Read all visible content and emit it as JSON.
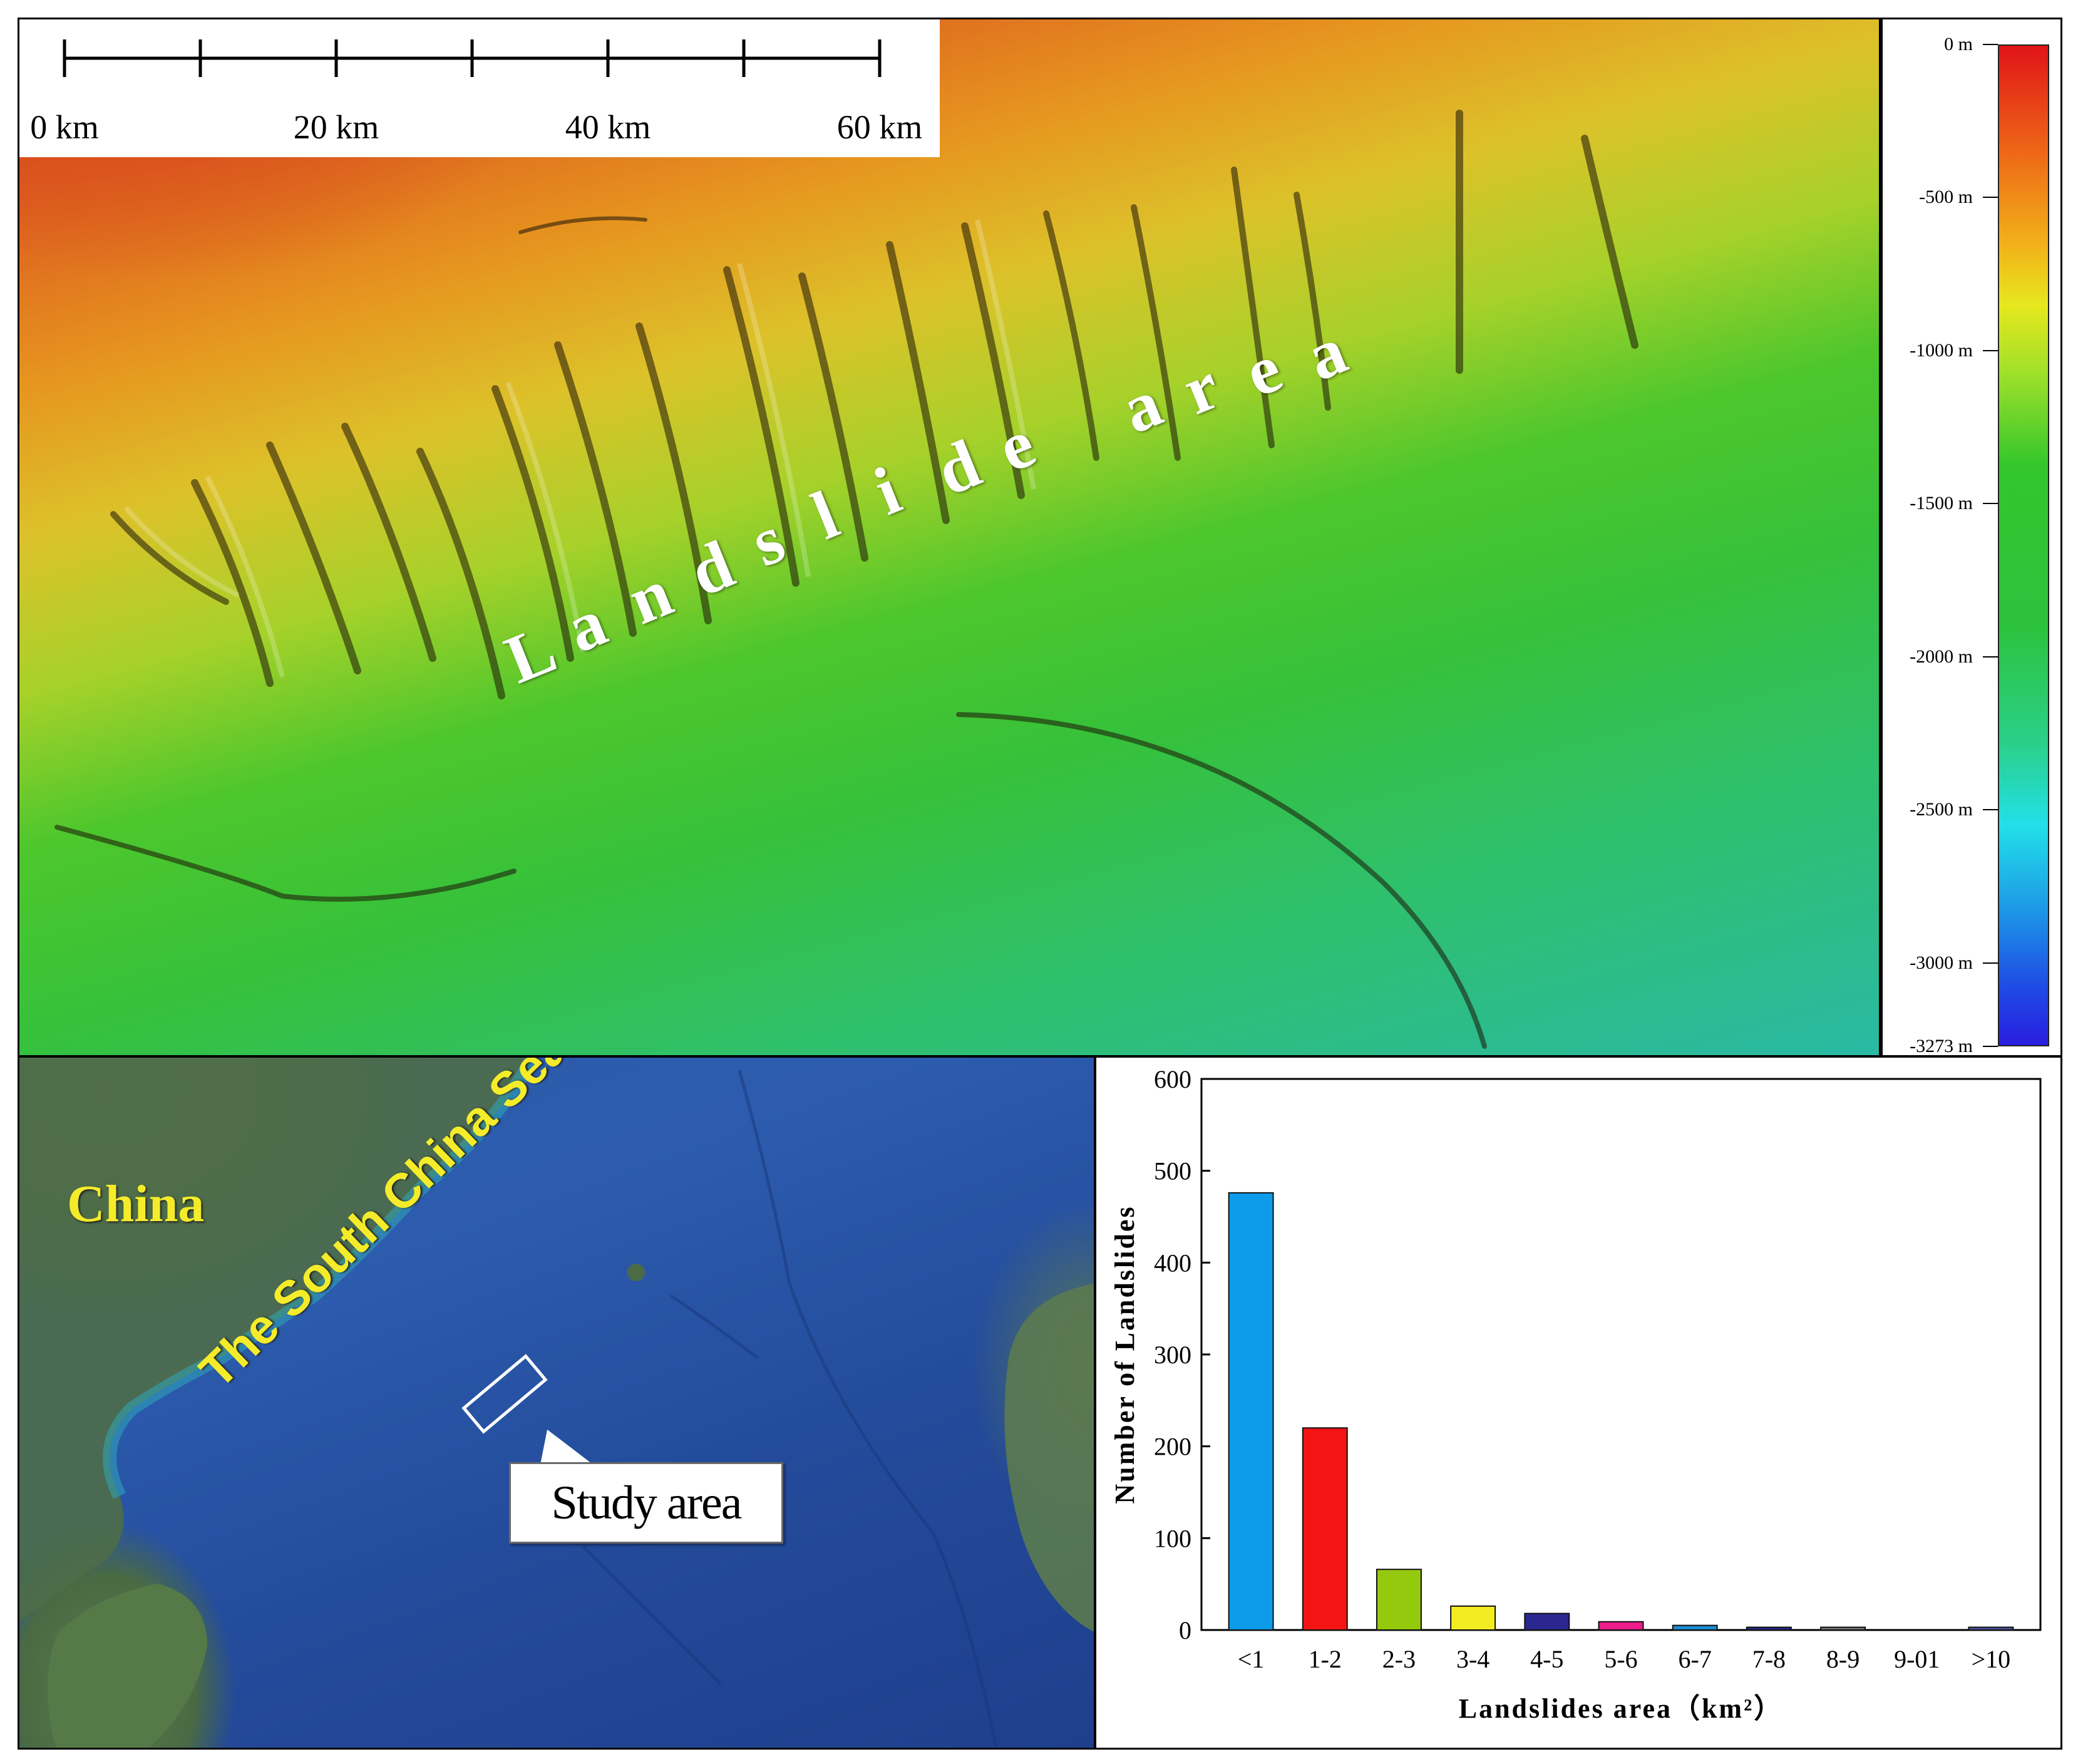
{
  "bathymetry": {
    "label": "Landslide area",
    "scale_bar": {
      "labels": [
        "0 km",
        "20 km",
        "40 km",
        "60 km"
      ]
    },
    "colorbar": {
      "labels": [
        "0 m",
        "-500 m",
        "-1000 m",
        "-1500 m",
        "-2000 m",
        "-2500 m",
        "-3000 m",
        "-3273 m"
      ],
      "colors": [
        "#e01418",
        "#ee6a17",
        "#e6e81e",
        "#34c62c",
        "#2ad08a",
        "#22e0e8",
        "#1e4de4",
        "#2a1ee0"
      ]
    }
  },
  "map": {
    "country_label": "China",
    "sea_label": "The South China Sea",
    "callout_label": "Study area"
  },
  "chart_data": {
    "type": "bar",
    "xlabel": "Landslides area（km²）",
    "ylabel": "Number of Landslides",
    "categories": [
      "<1",
      "1-2",
      "2-3",
      "3-4",
      "4-5",
      "5-6",
      "6-7",
      "7-8",
      "8-9",
      "9-01",
      ">10"
    ],
    "values": [
      476,
      220,
      66,
      26,
      18,
      9,
      5,
      3,
      3,
      0,
      3
    ],
    "colors": [
      "#0d9cea",
      "#f41414",
      "#95c90e",
      "#f4ec22",
      "#2a2890",
      "#ec1c8a",
      "#1a8cd0",
      "#2a2890",
      "#7a7a7a",
      "#9a9a9a",
      "#4a5aa8"
    ],
    "ylim": [
      0,
      600
    ],
    "yticks": [
      0,
      100,
      200,
      300,
      400,
      500,
      600
    ]
  }
}
